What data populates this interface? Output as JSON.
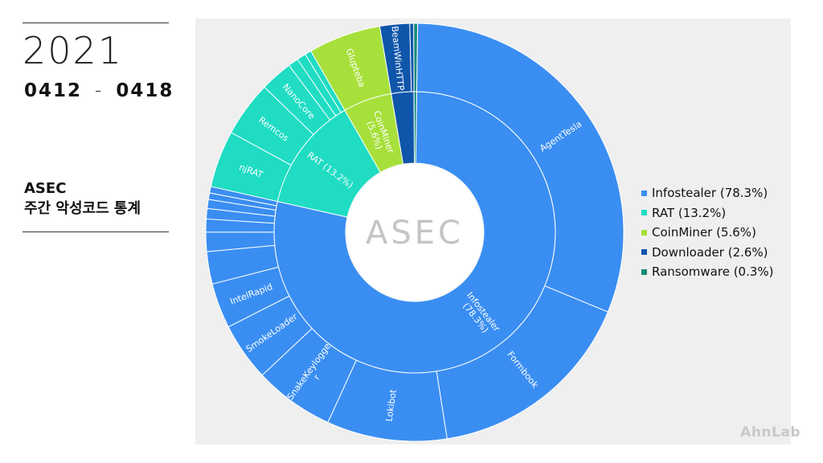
{
  "header": {
    "year": "2021",
    "range_start": "0412",
    "range_sep": "-",
    "range_end": "0418",
    "report_line1": "ASEC",
    "report_line2": "주간 악성코드 통계"
  },
  "center_logo": "ASEC",
  "brand": "AhnLab",
  "chart_data": {
    "type": "sunburst",
    "inner": [
      {
        "label": "Infostealer",
        "value": 78.3,
        "text": "Infostealer\n(78.3%)",
        "color": "#3a8ef2"
      },
      {
        "label": "RAT",
        "value": 13.2,
        "text": "RAT (13.2%)",
        "color": "#1fdcc3"
      },
      {
        "label": "CoinMiner",
        "value": 5.6,
        "text": "CoinMiner\n(5.6%)",
        "color": "#a7e03a"
      },
      {
        "label": "Downloader",
        "value": 2.6,
        "text": "",
        "color": "#0f55aa"
      },
      {
        "label": "Ransomware",
        "value": 0.3,
        "text": "",
        "color": "#168a7a"
      }
    ],
    "outer": [
      {
        "parent": "Infostealer",
        "label": "AgentTesla",
        "value": 31.0
      },
      {
        "parent": "Infostealer",
        "label": "Formbook",
        "value": 16.3
      },
      {
        "parent": "Infostealer",
        "label": "Lokibot",
        "value": 9.3
      },
      {
        "parent": "Infostealer",
        "label": "SnakeKeylogger",
        "text": "SnakeKeylogge\nr",
        "value": 6.2
      },
      {
        "parent": "Infostealer",
        "label": "SmokeLoader",
        "value": 4.5
      },
      {
        "parent": "Infostealer",
        "label": "IntelRapid",
        "value": 3.5
      },
      {
        "parent": "Infostealer",
        "label": "",
        "value": 2.5
      },
      {
        "parent": "Infostealer",
        "label": "",
        "value": 1.5
      },
      {
        "parent": "Infostealer",
        "label": "",
        "value": 1.0
      },
      {
        "parent": "Infostealer",
        "label": "",
        "value": 0.8
      },
      {
        "parent": "Infostealer",
        "label": "",
        "value": 0.7
      },
      {
        "parent": "Infostealer",
        "label": "",
        "value": 0.5
      },
      {
        "parent": "Infostealer",
        "label": "",
        "value": 0.5
      },
      {
        "parent": "RAT",
        "label": "njRAT",
        "value": 4.4
      },
      {
        "parent": "RAT",
        "label": "Remcos",
        "value": 4.3
      },
      {
        "parent": "RAT",
        "label": "NanoCore",
        "value": 2.5
      },
      {
        "parent": "RAT",
        "label": "",
        "value": 0.8
      },
      {
        "parent": "RAT",
        "label": "",
        "value": 0.7
      },
      {
        "parent": "RAT",
        "label": "",
        "value": 0.5
      },
      {
        "parent": "CoinMiner",
        "label": "Glupteba",
        "value": 5.6
      },
      {
        "parent": "Downloader",
        "label": "BeamWinHTTP",
        "value": 2.3
      },
      {
        "parent": "Downloader",
        "label": "",
        "value": 0.3
      },
      {
        "parent": "Ransomware",
        "label": "",
        "value": 0.3
      }
    ],
    "legend": {
      "position": "right",
      "items": [
        {
          "label": "Infostealer (78.3%)",
          "color": "#3a8ef2"
        },
        {
          "label": "RAT (13.2%)",
          "color": "#1fdcc3"
        },
        {
          "label": "CoinMiner (5.6%)",
          "color": "#a7e03a"
        },
        {
          "label": "Downloader (2.6%)",
          "color": "#0f55aa"
        },
        {
          "label": "Ransomware (0.3%)",
          "color": "#168a7a"
        }
      ]
    }
  }
}
